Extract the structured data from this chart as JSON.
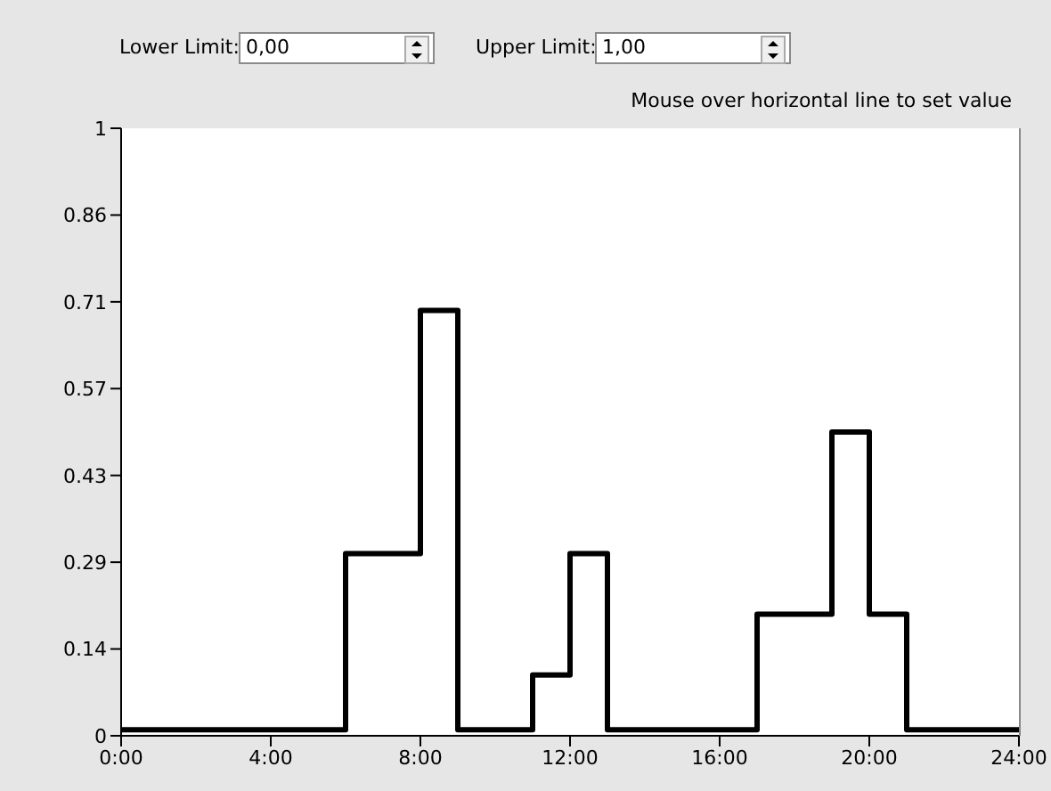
{
  "chart_data": {
    "type": "step",
    "annotations": [
      "Lower Limit:",
      "0,00",
      "Upper Limit:",
      "1,00",
      "Mouse over horizontal line to set value"
    ],
    "x": [
      0,
      6,
      8,
      9,
      11,
      12,
      13,
      17,
      19,
      20,
      21,
      24
    ],
    "series": [
      {
        "color": "#000000",
        "values": [
          0.01,
          0.3,
          0.7,
          0.01,
          0.1,
          0.3,
          0.01,
          0.2,
          0.5,
          0.2,
          0.01,
          0.01
        ]
      }
    ],
    "xlim": [
      0,
      24
    ],
    "xticks": [
      {
        "value": 0,
        "label": "0:00"
      },
      {
        "value": 4,
        "label": "4:00"
      },
      {
        "value": 8,
        "label": "8:00"
      },
      {
        "value": 12,
        "label": "12:00"
      },
      {
        "value": 16,
        "label": "16:00"
      },
      {
        "value": 20,
        "label": "20:00"
      },
      {
        "value": 24,
        "label": "24:00"
      }
    ],
    "ylim": [
      0,
      1
    ],
    "yticks": [
      0,
      {
        "value": 0.142857,
        "label": "0.14"
      },
      {
        "value": 0.285714,
        "label": "0.29"
      },
      {
        "value": 0.428571,
        "label": "0.43"
      },
      {
        "value": 0.571429,
        "label": "0.57"
      },
      {
        "value": 0.714286,
        "label": "0.71"
      },
      {
        "value": 0.857143,
        "label": "0.86"
      },
      1
    ],
    "grid": false,
    "legend": false,
    "marker": "none",
    "line_style": "solid"
  }
}
